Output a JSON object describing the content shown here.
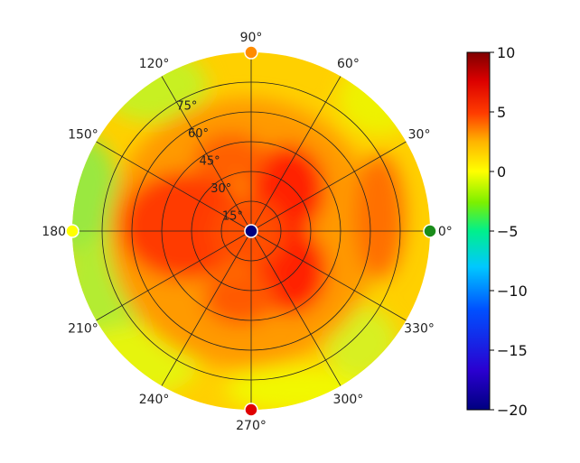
{
  "chart_data": {
    "type": "heatmap",
    "projection": "polar",
    "theta_tick_labels": [
      "0°",
      "30°",
      "60°",
      "90°",
      "120°",
      "150°",
      "180°",
      "210°",
      "240°",
      "270°",
      "300°",
      "330°"
    ],
    "theta_ticks_deg": [
      0,
      30,
      60,
      90,
      120,
      150,
      180,
      210,
      240,
      270,
      300,
      330
    ],
    "r_tick_labels": [
      "15°",
      "30°",
      "45°",
      "60°",
      "75°"
    ],
    "r_ticks": [
      15,
      30,
      45,
      60,
      75
    ],
    "r_range": [
      0,
      90
    ],
    "colorbar": {
      "colormap": "jet-like",
      "range": [
        -20,
        10
      ],
      "tick_labels": [
        "10",
        "5",
        "0",
        "−5",
        "−10",
        "−15",
        "−20"
      ],
      "ticks": [
        10,
        5,
        0,
        -5,
        -10,
        -15,
        -20
      ]
    },
    "markers": [
      {
        "theta_deg": 0,
        "r": 90,
        "value": -3,
        "color": "#1a8c1a"
      },
      {
        "theta_deg": 90,
        "r": 90,
        "value": 3,
        "color": "#ff8c00"
      },
      {
        "theta_deg": 180,
        "r": 90,
        "value": 0,
        "color": "#ffff00"
      },
      {
        "theta_deg": 270,
        "r": 90,
        "value": 7,
        "color": "#e00000"
      },
      {
        "theta_deg": 0,
        "r": 0,
        "value": -20,
        "color": "#000080"
      }
    ],
    "regions": [
      {
        "label": "center hot lobe upper-right",
        "theta_deg": 45,
        "r": 20,
        "value": 6
      },
      {
        "label": "center hot lobe lower-right",
        "theta_deg": 315,
        "r": 25,
        "value": 6
      },
      {
        "label": "left hot band",
        "theta_deg": 180,
        "r": 40,
        "value": 5
      },
      {
        "label": "edge cool left",
        "theta_deg": 160,
        "r": 82,
        "value": -2
      },
      {
        "label": "edge cool lower-left",
        "theta_deg": 215,
        "r": 85,
        "value": -2
      },
      {
        "label": "edge cool upper-left",
        "theta_deg": 120,
        "r": 88,
        "value": -1
      }
    ],
    "grid": true
  }
}
